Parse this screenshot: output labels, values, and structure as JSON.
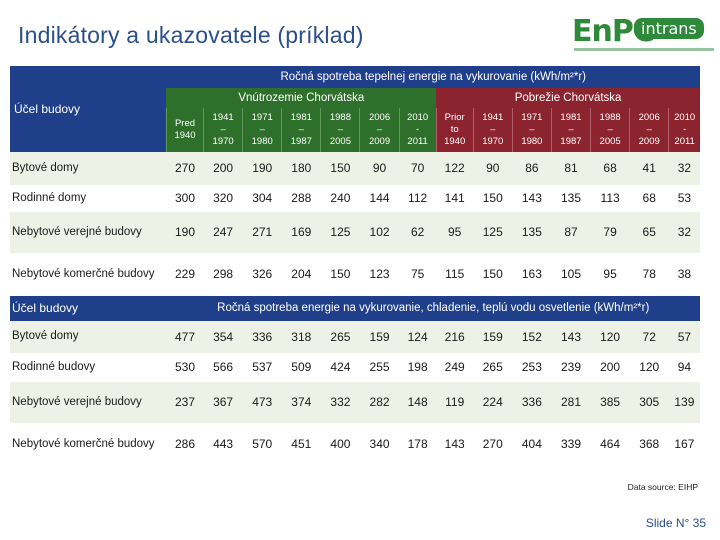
{
  "title": "Indikátory a ukazovatele (príklad)",
  "logo": {
    "main": "EnPC",
    "badge": "intrans"
  },
  "table": {
    "row_label_header_1": "Účel budovy",
    "section1_title": "Ročná spotreba tepelnej energie na vykurovanie (kWh/m²*r)",
    "region_inland": "Vnútrozemie Chorvátska",
    "region_coast": "Pobrežie Chorvátska",
    "periods_inland": [
      [
        "Pred",
        "1940"
      ],
      [
        "1941",
        "–",
        "1970"
      ],
      [
        "1971",
        "–",
        "1980"
      ],
      [
        "1981",
        "–",
        "1987"
      ],
      [
        "1988",
        "–",
        "2005"
      ],
      [
        "2006",
        "–",
        "2009"
      ],
      [
        "2010",
        "-",
        "2011"
      ]
    ],
    "periods_coast": [
      [
        "Prior",
        "to",
        "1940"
      ],
      [
        "1941",
        "–",
        "1970"
      ],
      [
        "1971",
        "–",
        "1980"
      ],
      [
        "1981",
        "–",
        "1987"
      ],
      [
        "1988",
        "–",
        "2005"
      ],
      [
        "2006",
        "–",
        "2009"
      ],
      [
        "2010",
        "-",
        "2011"
      ]
    ],
    "section1_rows": [
      {
        "label": "Bytové domy",
        "values": [
          "270",
          "200",
          "190",
          "180",
          "150",
          "90",
          "70",
          "122",
          "90",
          "86",
          "81",
          "68",
          "41",
          "32"
        ]
      },
      {
        "label": "Rodinné domy",
        "values": [
          "300",
          "320",
          "304",
          "288",
          "240",
          "144",
          "112",
          "141",
          "150",
          "143",
          "135",
          "113",
          "68",
          "53"
        ]
      },
      {
        "label": "Nebytové verejné budovy",
        "values": [
          "190",
          "247",
          "271",
          "169",
          "125",
          "102",
          "62",
          "95",
          "125",
          "135",
          "87",
          "79",
          "65",
          "32"
        ]
      },
      {
        "label": "Nebytové komerčné budovy",
        "values": [
          "229",
          "298",
          "326",
          "204",
          "150",
          "123",
          "75",
          "115",
          "150",
          "163",
          "105",
          "95",
          "78",
          "38"
        ]
      }
    ],
    "row_label_header_2": "Účel budovy",
    "section2_title": "Ročná spotreba energie na vykurovanie, chladenie, teplú vodu osvetlenie (kWh/m²*r)",
    "section2_rows": [
      {
        "label": "Bytové domy",
        "values": [
          "477",
          "354",
          "336",
          "318",
          "265",
          "159",
          "124",
          "216",
          "159",
          "152",
          "143",
          "120",
          "72",
          "57"
        ]
      },
      {
        "label": "Rodinné budovy",
        "values": [
          "530",
          "566",
          "537",
          "509",
          "424",
          "255",
          "198",
          "249",
          "265",
          "253",
          "239",
          "200",
          "120",
          "94"
        ]
      },
      {
        "label": "Nebytové verejné budovy",
        "values": [
          "237",
          "367",
          "473",
          "374",
          "332",
          "282",
          "148",
          "119",
          "224",
          "336",
          "281",
          "385",
          "305",
          "139"
        ]
      },
      {
        "label": "Nebytové komerčné budovy",
        "values": [
          "286",
          "443",
          "570",
          "451",
          "400",
          "340",
          "178",
          "143",
          "270",
          "404",
          "339",
          "464",
          "368",
          "167"
        ]
      }
    ]
  },
  "source": "Data source: EIHP",
  "slide_number": "Slide N° 35",
  "colors": {
    "header_blue": "#1f3f8a",
    "inland_green": "#2f6f2c",
    "coast_red": "#8c2430",
    "band": "#eef2e6"
  }
}
